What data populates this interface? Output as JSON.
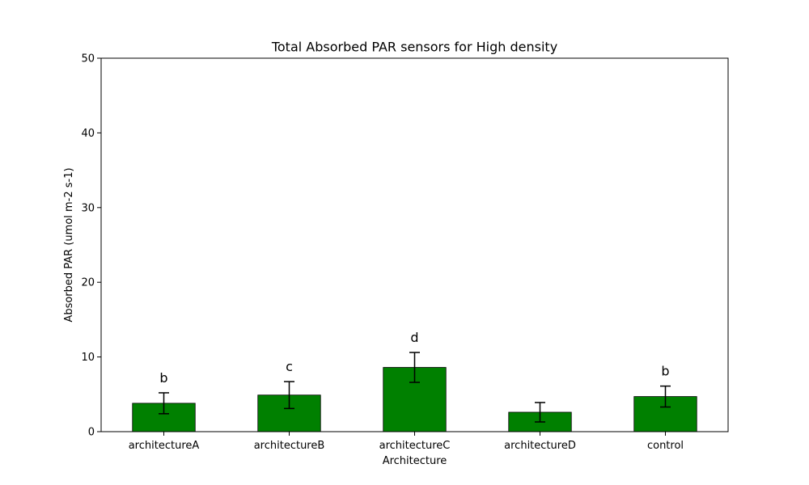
{
  "chart_data": {
    "type": "bar",
    "title": "Total Absorbed PAR sensors for High density",
    "xlabel": "Architecture",
    "ylabel": "Absorbed PAR (umol m-2 s-1)",
    "ylim": [
      0,
      50
    ],
    "yticks": [
      0,
      10,
      20,
      30,
      40,
      50
    ],
    "categories": [
      "architectureA",
      "architectureB",
      "architectureC",
      "architectureD",
      "control"
    ],
    "values": [
      3.8,
      4.9,
      8.6,
      2.6,
      4.7
    ],
    "errors": [
      1.4,
      1.8,
      2.0,
      1.3,
      1.4
    ],
    "significance_labels": [
      "b",
      "c",
      "d",
      "",
      "b"
    ],
    "bar_color": "#008000",
    "grid": false,
    "legend": "none"
  }
}
